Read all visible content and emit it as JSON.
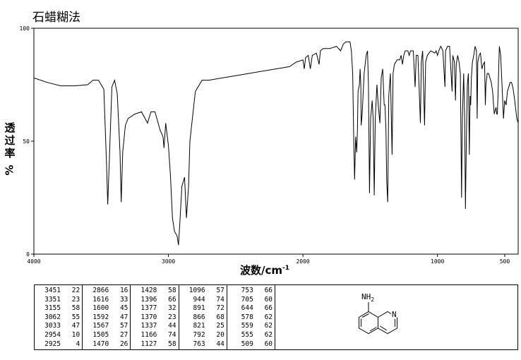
{
  "title": "石蜡糊法",
  "ylabel_main": "透过率",
  "ylabel_unit": "%",
  "xlabel_main": "波数/cm",
  "xlabel_exp": "-1",
  "chart_data": {
    "type": "line",
    "xlim": [
      4000,
      400
    ],
    "ylim": [
      0,
      100
    ],
    "x_ticks": [
      4000,
      3000,
      2000,
      1000,
      500
    ],
    "y_ticks": [
      0,
      50,
      100
    ],
    "grid": false,
    "line_color": "#000000",
    "series": [
      {
        "points": [
          [
            4000,
            78
          ],
          [
            3900,
            76
          ],
          [
            3800,
            74.5
          ],
          [
            3700,
            74.5
          ],
          [
            3600,
            75
          ],
          [
            3560,
            77
          ],
          [
            3520,
            77
          ],
          [
            3480,
            73
          ],
          [
            3460,
            40
          ],
          [
            3451,
            22
          ],
          [
            3440,
            40
          ],
          [
            3420,
            74
          ],
          [
            3400,
            77
          ],
          [
            3380,
            71
          ],
          [
            3360,
            45
          ],
          [
            3351,
            23
          ],
          [
            3340,
            45
          ],
          [
            3320,
            57
          ],
          [
            3300,
            60
          ],
          [
            3250,
            62
          ],
          [
            3200,
            63
          ],
          [
            3155,
            58
          ],
          [
            3130,
            63
          ],
          [
            3100,
            63
          ],
          [
            3062,
            55
          ],
          [
            3040,
            52
          ],
          [
            3033,
            47
          ],
          [
            3020,
            58
          ],
          [
            3000,
            48
          ],
          [
            2985,
            35
          ],
          [
            2970,
            16
          ],
          [
            2960,
            12
          ],
          [
            2954,
            10
          ],
          [
            2935,
            8
          ],
          [
            2925,
            4
          ],
          [
            2915,
            14
          ],
          [
            2900,
            30
          ],
          [
            2880,
            34
          ],
          [
            2866,
            16
          ],
          [
            2850,
            30
          ],
          [
            2840,
            50
          ],
          [
            2800,
            72
          ],
          [
            2750,
            77
          ],
          [
            2700,
            77
          ],
          [
            2600,
            78
          ],
          [
            2500,
            79
          ],
          [
            2400,
            80
          ],
          [
            2300,
            81
          ],
          [
            2200,
            82
          ],
          [
            2100,
            83
          ],
          [
            2050,
            85
          ],
          [
            2000,
            86
          ],
          [
            1990,
            82
          ],
          [
            1980,
            87
          ],
          [
            1960,
            88
          ],
          [
            1945,
            82
          ],
          [
            1930,
            88
          ],
          [
            1900,
            89
          ],
          [
            1880,
            84
          ],
          [
            1870,
            90
          ],
          [
            1850,
            91
          ],
          [
            1800,
            91
          ],
          [
            1750,
            92
          ],
          [
            1720,
            90
          ],
          [
            1700,
            93
          ],
          [
            1680,
            94
          ],
          [
            1650,
            94
          ],
          [
            1640,
            90
          ],
          [
            1630,
            80
          ],
          [
            1622,
            50
          ],
          [
            1616,
            33
          ],
          [
            1608,
            52
          ],
          [
            1600,
            45
          ],
          [
            1595,
            55
          ],
          [
            1590,
            72
          ],
          [
            1580,
            75
          ],
          [
            1575,
            82
          ],
          [
            1570,
            75
          ],
          [
            1567,
            57
          ],
          [
            1560,
            62
          ],
          [
            1545,
            80
          ],
          [
            1530,
            88
          ],
          [
            1520,
            90
          ],
          [
            1513,
            75
          ],
          [
            1505,
            27
          ],
          [
            1497,
            60
          ],
          [
            1485,
            68
          ],
          [
            1478,
            60
          ],
          [
            1470,
            26
          ],
          [
            1462,
            60
          ],
          [
            1450,
            75
          ],
          [
            1440,
            66
          ],
          [
            1428,
            58
          ],
          [
            1418,
            78
          ],
          [
            1407,
            82
          ],
          [
            1396,
            66
          ],
          [
            1390,
            66
          ],
          [
            1383,
            55
          ],
          [
            1377,
            32
          ],
          [
            1370,
            23
          ],
          [
            1362,
            70
          ],
          [
            1350,
            80
          ],
          [
            1337,
            44
          ],
          [
            1330,
            80
          ],
          [
            1320,
            84
          ],
          [
            1300,
            86
          ],
          [
            1280,
            86
          ],
          [
            1270,
            88
          ],
          [
            1260,
            84
          ],
          [
            1250,
            88
          ],
          [
            1240,
            90
          ],
          [
            1220,
            90
          ],
          [
            1210,
            88
          ],
          [
            1200,
            90
          ],
          [
            1180,
            90
          ],
          [
            1166,
            74
          ],
          [
            1158,
            88
          ],
          [
            1145,
            88
          ],
          [
            1127,
            58
          ],
          [
            1120,
            85
          ],
          [
            1110,
            90
          ],
          [
            1096,
            57
          ],
          [
            1088,
            85
          ],
          [
            1075,
            88
          ],
          [
            1050,
            90
          ],
          [
            1020,
            89
          ],
          [
            1010,
            90
          ],
          [
            1000,
            88
          ],
          [
            990,
            90
          ],
          [
            975,
            92
          ],
          [
            960,
            90
          ],
          [
            944,
            74
          ],
          [
            940,
            90
          ],
          [
            925,
            92
          ],
          [
            910,
            92
          ],
          [
            891,
            72
          ],
          [
            886,
            88
          ],
          [
            874,
            85
          ],
          [
            866,
            68
          ],
          [
            860,
            84
          ],
          [
            850,
            88
          ],
          [
            840,
            85
          ],
          [
            830,
            80
          ],
          [
            821,
            25
          ],
          [
            815,
            60
          ],
          [
            805,
            80
          ],
          [
            798,
            60
          ],
          [
            792,
            20
          ],
          [
            785,
            50
          ],
          [
            778,
            75
          ],
          [
            770,
            80
          ],
          [
            763,
            44
          ],
          [
            760,
            60
          ],
          [
            757,
            70
          ],
          [
            753,
            66
          ],
          [
            748,
            78
          ],
          [
            740,
            85
          ],
          [
            730,
            88
          ],
          [
            720,
            92
          ],
          [
            710,
            90
          ],
          [
            705,
            60
          ],
          [
            700,
            85
          ],
          [
            690,
            88
          ],
          [
            680,
            89
          ],
          [
            670,
            82
          ],
          [
            660,
            84
          ],
          [
            650,
            85
          ],
          [
            644,
            66
          ],
          [
            640,
            75
          ],
          [
            630,
            80
          ],
          [
            620,
            80
          ],
          [
            600,
            76
          ],
          [
            590,
            72
          ],
          [
            578,
            62
          ],
          [
            565,
            65
          ],
          [
            559,
            62
          ],
          [
            555,
            62
          ],
          [
            550,
            70
          ],
          [
            540,
            92
          ],
          [
            530,
            88
          ],
          [
            520,
            75
          ],
          [
            509,
            60
          ],
          [
            500,
            68
          ],
          [
            490,
            66
          ],
          [
            480,
            72
          ],
          [
            470,
            74
          ],
          [
            460,
            76
          ],
          [
            450,
            76
          ],
          [
            440,
            74
          ],
          [
            430,
            70
          ],
          [
            420,
            65
          ],
          [
            410,
            60
          ],
          [
            400,
            58
          ]
        ]
      }
    ]
  },
  "peak_table": [
    [
      [
        "3451",
        "22"
      ],
      [
        "3351",
        "23"
      ],
      [
        "3155",
        "58"
      ],
      [
        "3062",
        "55"
      ],
      [
        "3033",
        "47"
      ],
      [
        "2954",
        "10"
      ],
      [
        "2925",
        "4"
      ]
    ],
    [
      [
        "2866",
        "16"
      ],
      [
        "1616",
        "33"
      ],
      [
        "1600",
        "45"
      ],
      [
        "1592",
        "47"
      ],
      [
        "1567",
        "57"
      ],
      [
        "1505",
        "27"
      ],
      [
        "1470",
        "26"
      ]
    ],
    [
      [
        "1428",
        "58"
      ],
      [
        "1396",
        "66"
      ],
      [
        "1377",
        "32"
      ],
      [
        "1370",
        "23"
      ],
      [
        "1337",
        "44"
      ],
      [
        "1166",
        "74"
      ],
      [
        "1127",
        "58"
      ]
    ],
    [
      [
        "1096",
        "57"
      ],
      [
        "944",
        "74"
      ],
      [
        "891",
        "72"
      ],
      [
        "866",
        "68"
      ],
      [
        "821",
        "25"
      ],
      [
        "792",
        "20"
      ],
      [
        "763",
        "44"
      ]
    ],
    [
      [
        "753",
        "66"
      ],
      [
        "705",
        "60"
      ],
      [
        "644",
        "66"
      ],
      [
        "578",
        "62"
      ],
      [
        "559",
        "62"
      ],
      [
        "555",
        "62"
      ],
      [
        "509",
        "60"
      ]
    ]
  ],
  "molecule": {
    "substituent": "NH",
    "substituent_sub": "2",
    "ring_atom": "N"
  }
}
